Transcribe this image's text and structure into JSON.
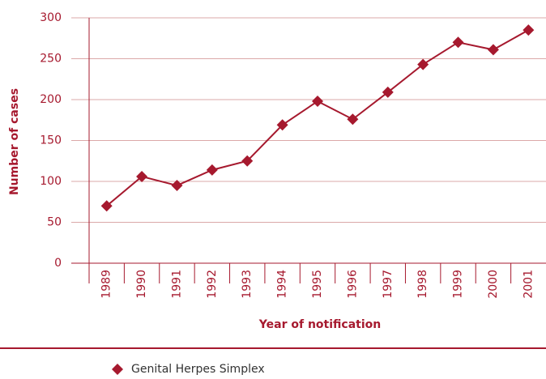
{
  "chart_data": {
    "type": "line",
    "y_label": "Number of cases",
    "x_label": "Year of notification",
    "categories": [
      "1989",
      "1990",
      "1991",
      "1992",
      "1993",
      "1994",
      "1995",
      "1996",
      "1997",
      "1998",
      "1999",
      "2000",
      "2001"
    ],
    "series": [
      {
        "name": "Genital Herpes Simplex",
        "color": "#a6192e",
        "values": [
          70,
          106,
          95,
          114,
          125,
          169,
          198,
          176,
          209,
          243,
          270,
          261,
          285
        ]
      }
    ],
    "ylim": [
      0,
      300
    ],
    "yticks": [
      0,
      50,
      100,
      150,
      200,
      250,
      300
    ],
    "grid": true
  }
}
